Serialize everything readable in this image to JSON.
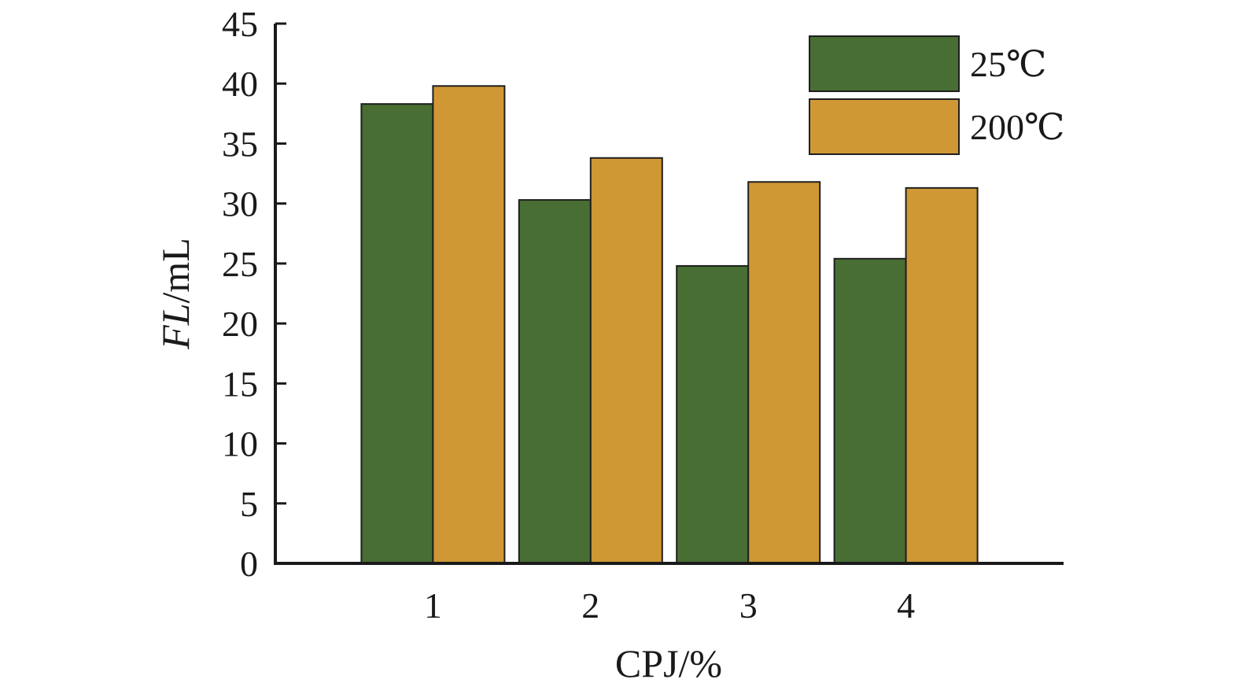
{
  "chart_data": {
    "type": "bar",
    "title": "",
    "xlabel": "CPJ/%",
    "ylabel_italic": "FL",
    "ylabel_unit": "/mL",
    "categories": [
      "1",
      "2",
      "3",
      "4"
    ],
    "ylim": [
      0,
      45
    ],
    "yticks": [
      0,
      5,
      10,
      15,
      20,
      25,
      30,
      35,
      40,
      45
    ],
    "xlim": [
      0,
      5
    ],
    "series": [
      {
        "name": "25℃",
        "color": "#486e33",
        "values": [
          38.3,
          30.3,
          24.8,
          25.4
        ]
      },
      {
        "name": "200℃",
        "color": "#cf9834",
        "values": [
          39.8,
          33.8,
          31.8,
          31.3
        ]
      }
    ],
    "legend_position": "top-right",
    "grid": false
  }
}
